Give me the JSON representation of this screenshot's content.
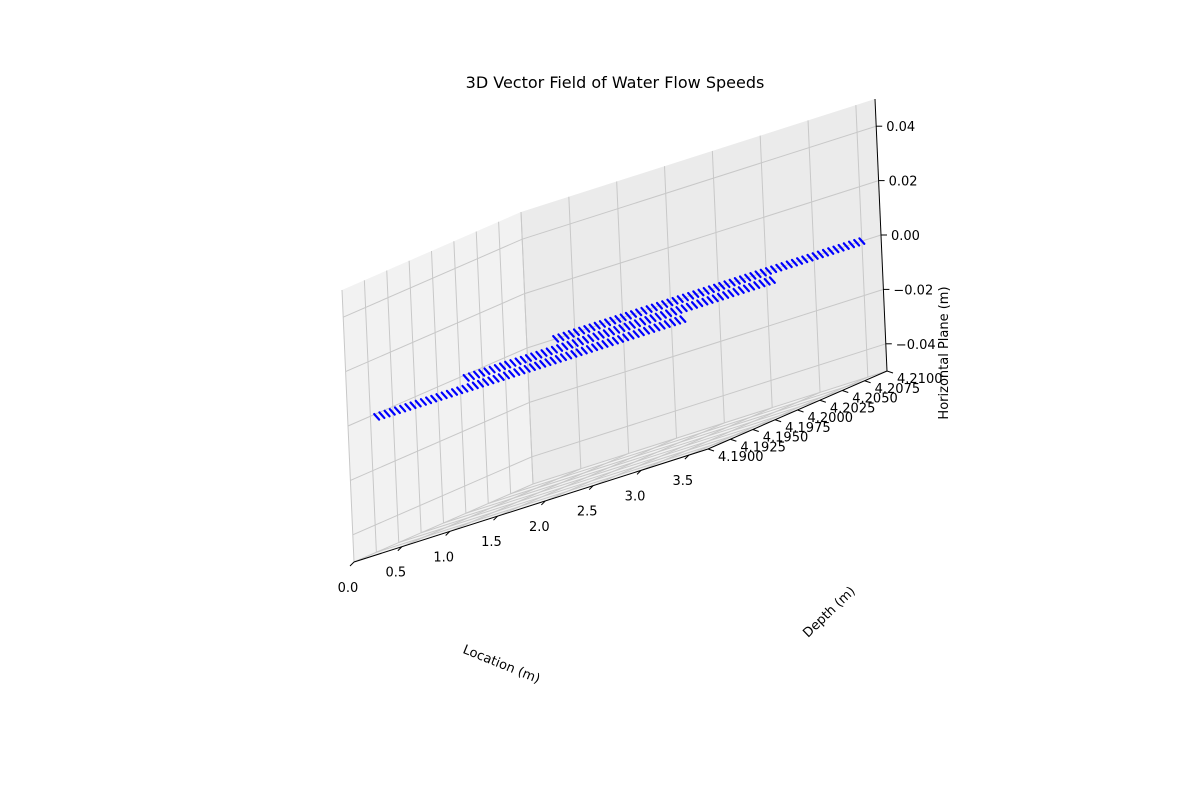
{
  "chart_data": {
    "type": "quiver3d",
    "title": "3D Vector Field of Water Flow Speeds",
    "xlabel": "Location (m)",
    "ylabel": "Depth (m)",
    "zlabel": "Horizontal Plane (m)",
    "xlim": [
      0,
      3.7
    ],
    "ylim": [
      4.19,
      4.21
    ],
    "zlim": [
      -0.05,
      0.05
    ],
    "x_ticks": [
      "0.0",
      "0.5",
      "1.0",
      "1.5",
      "2.0",
      "2.5",
      "3.0",
      "3.5"
    ],
    "y_ticks": [
      "4.1900",
      "4.1925",
      "4.1950",
      "4.1975",
      "4.2000",
      "4.2025",
      "4.2050",
      "4.2075",
      "4.2100"
    ],
    "z_ticks": [
      "−0.04",
      "−0.02",
      "0.00",
      "0.02",
      "0.04"
    ],
    "grid": true,
    "arrow_color": "#0000ff",
    "series": [
      {
        "x_range": [
          0.3,
          3.5
        ],
        "y": 4.19,
        "z": 0.0,
        "count": 60
      },
      {
        "x_range": [
          0.3,
          3.5
        ],
        "y": 4.2,
        "z": 0.0,
        "count": 60
      },
      {
        "x_range": [
          0.3,
          3.5
        ],
        "y": 4.21,
        "z": 0.0,
        "count": 60
      }
    ]
  }
}
